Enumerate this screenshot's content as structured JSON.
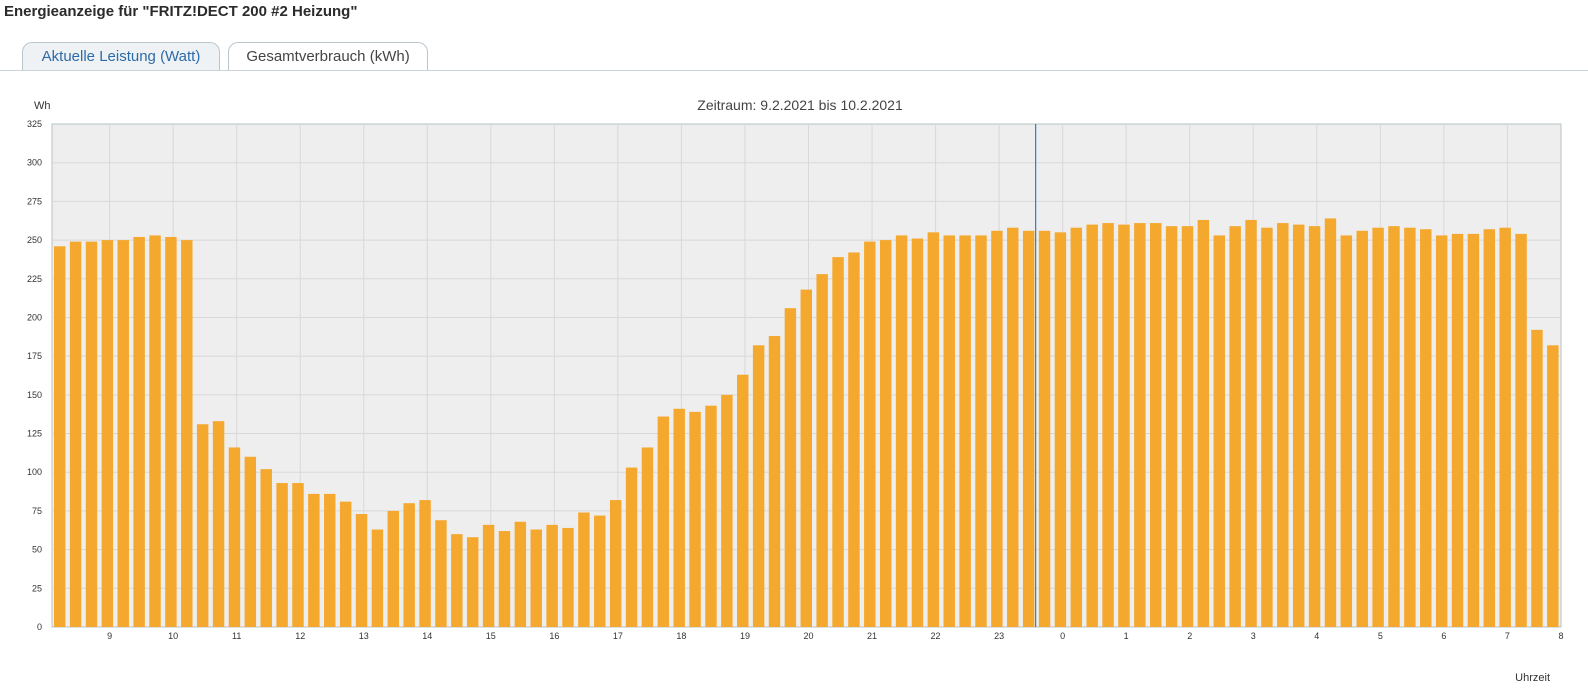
{
  "page": {
    "title": "Energieanzeige für \"FRITZ!DECT 200 #2 Heizung\""
  },
  "tabs": [
    {
      "label": "Aktuelle Leistung (Watt)",
      "active": false
    },
    {
      "label": "Gesamtverbrauch (kWh)",
      "active": true
    }
  ],
  "colors": {
    "bar": "#f5a82e",
    "plot_bg": "#eeeeee",
    "grid": "#d8d8d8",
    "day_divider": "#2a7fc0",
    "link": "#2d6ba8"
  },
  "chart_data": {
    "type": "bar",
    "title": "Zeitraum: 9.2.2021 bis 10.2.2021",
    "ylabel": "Wh",
    "xlabel": "Uhrzeit",
    "ylim": [
      0,
      325
    ],
    "yticks": [
      0,
      25,
      50,
      75,
      100,
      125,
      150,
      175,
      200,
      225,
      250,
      275,
      300,
      325
    ],
    "x_tick_labels": [
      "9",
      "10",
      "11",
      "12",
      "13",
      "14",
      "15",
      "16",
      "17",
      "18",
      "19",
      "20",
      "21",
      "22",
      "23",
      "0",
      "1",
      "2",
      "3",
      "4",
      "5",
      "6",
      "7",
      "8"
    ],
    "interval_minutes": 15,
    "values": [
      246,
      249,
      249,
      250,
      250,
      252,
      253,
      252,
      250,
      131,
      133,
      116,
      110,
      102,
      93,
      93,
      86,
      86,
      81,
      73,
      63,
      75,
      80,
      82,
      69,
      60,
      58,
      66,
      62,
      68,
      63,
      66,
      64,
      74,
      72,
      82,
      103,
      116,
      136,
      141,
      139,
      143,
      150,
      163,
      182,
      188,
      206,
      218,
      228,
      239,
      242,
      249,
      250,
      253,
      251,
      255,
      253,
      253,
      253,
      256,
      258,
      256,
      256,
      255,
      258,
      260,
      261,
      260,
      261,
      261,
      259,
      259,
      263,
      253,
      259,
      263,
      258,
      261,
      260,
      259,
      264,
      253,
      256,
      258,
      259,
      258,
      257,
      253,
      254,
      254,
      257,
      258,
      254,
      192,
      182
    ],
    "grid": true
  }
}
